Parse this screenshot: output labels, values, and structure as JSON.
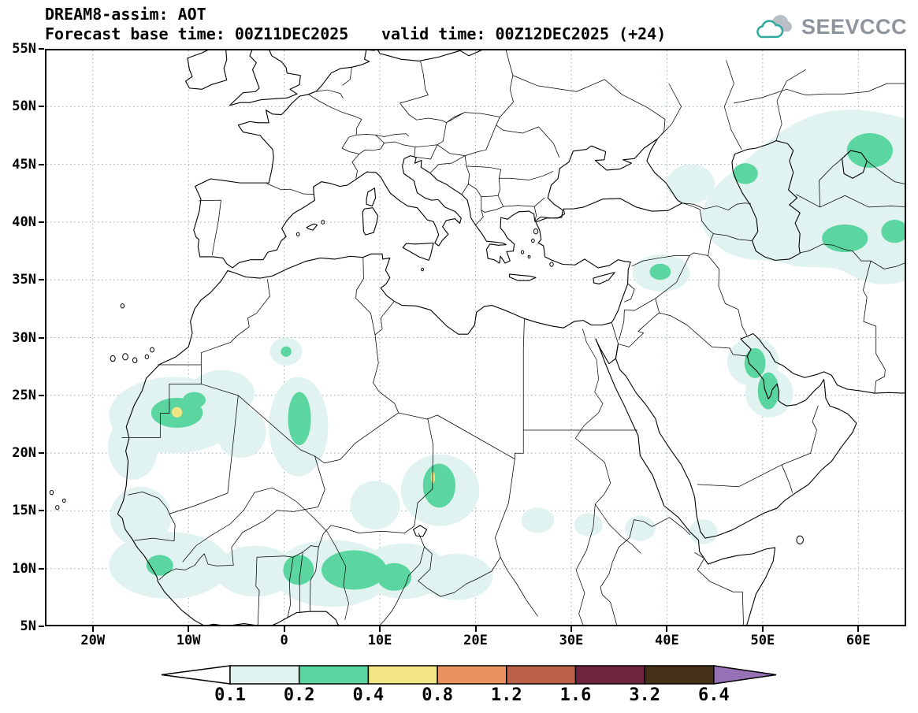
{
  "header": {
    "line1": "DREAM8-assim: AOT",
    "forecast_base": "Forecast base time: 00Z11DEC2025",
    "valid": "valid time: 00Z12DEC2025 (+24)"
  },
  "branding": {
    "logo_text": "SEEVCCC",
    "text_color": "#8E949B",
    "cloud_color": "#2FA89E",
    "cloud_back_color": "#B9BFC5"
  },
  "map": {
    "lat_ticks": [
      "55N",
      "50N",
      "45N",
      "40N",
      "35N",
      "30N",
      "25N",
      "20N",
      "15N",
      "10N",
      "5N"
    ],
    "lon_ticks": [
      "20W",
      "10W",
      "0",
      "10E",
      "20E",
      "30E",
      "40E",
      "50E",
      "60E"
    ]
  },
  "chart_data": {
    "type": "filled-contour-map",
    "title": "DREAM8-assim: AOT",
    "variable": "AOT (aerosol optical thickness)",
    "model": "DREAM8-assim",
    "forecast_base_time": "00Z11DEC2025",
    "valid_time": "00Z12DEC2025 (+24)",
    "lead_hours": 24,
    "lon_range": [
      -25,
      65
    ],
    "lat_range": [
      5,
      55
    ],
    "lat_tick_values": [
      55,
      50,
      45,
      40,
      35,
      30,
      25,
      20,
      15,
      10,
      5
    ],
    "lon_tick_values": [
      -20,
      -10,
      0,
      10,
      20,
      30,
      40,
      50,
      60
    ],
    "grid": "dotted gridlines, 10 deg lon x 5 deg lat",
    "contour_levels": [
      0.1,
      0.2,
      0.4,
      0.8,
      1.2,
      1.6,
      3.2,
      6.4
    ],
    "legend_labels": [
      "0.1",
      "0.2",
      "0.4",
      "0.8",
      "1.2",
      "1.6",
      "3.2",
      "6.4"
    ],
    "level_fill_colors": [
      "#E1F3F0",
      "#5BD6A1",
      "#F2E584",
      "#EA9260",
      "#BC6248",
      "#702440",
      "#453117"
    ],
    "underflow_color": "#FFFFFF",
    "overflow_color": "#9671B5",
    "legend_position": "bottom",
    "features": [
      {
        "region": "Western Sahara / Mauritania / NW Mali plume",
        "approx_center": "11W 23.5N",
        "max_band": "0.4-0.8"
      },
      {
        "region": "Central Mali / S Algeria plume",
        "approx_center": "2E 22N",
        "max_band": "0.2-0.4"
      },
      {
        "region": "NW Algeria spot",
        "approx_center": "0E 29N",
        "max_band": "0.2-0.4"
      },
      {
        "region": "Sahel and Gulf of Guinea band (Senegal to Cameroon)",
        "approx_center": "5E 10N",
        "max_band": "0.2-0.4"
      },
      {
        "region": "Chad / Sudan border plume",
        "approx_center": "16E 17N",
        "max_band": "0.4-0.8"
      },
      {
        "region": "Sudan / Eritrea / Horn small patches",
        "approx_center": "27-44E 13-14N",
        "max_band": "0.1-0.2"
      },
      {
        "region": "Syria / N Iraq patch",
        "approx_center": "39E 35.5N",
        "max_band": "0.2-0.4"
      },
      {
        "region": "Persian Gulf plume",
        "approx_center": "50E 26.5N",
        "max_band": "0.2-0.4"
      },
      {
        "region": "Caucasus / Caspian / Central Asia / NE Iran area",
        "approx_center": "44-65E 34-50N",
        "max_band": "0.2-0.4"
      }
    ]
  }
}
